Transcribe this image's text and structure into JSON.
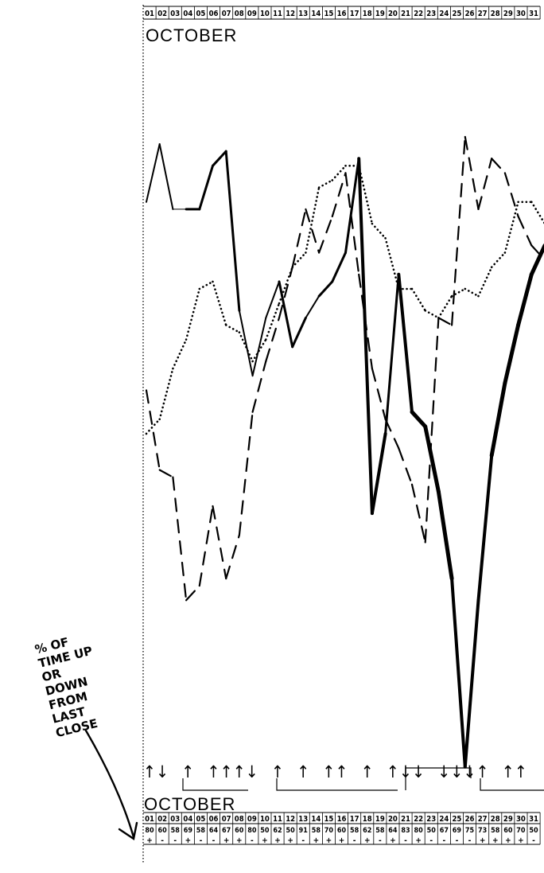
{
  "month": "OCTOBER",
  "days": [
    "01",
    "02",
    "03",
    "04",
    "05",
    "06",
    "07",
    "08",
    "09",
    "10",
    "11",
    "12",
    "13",
    "14",
    "15",
    "16",
    "17",
    "18",
    "19",
    "20",
    "21",
    "22",
    "23",
    "24",
    "25",
    "26",
    "27",
    "28",
    "29",
    "30",
    "31"
  ],
  "handwritten_note": [
    "% OF",
    "TIME UP",
    "OR",
    "DOWN",
    "FROM",
    "LAST",
    "CLOSE"
  ],
  "bottom_row_values": [
    "80",
    "60",
    "58",
    "69",
    "58",
    "64",
    "67",
    "60",
    "80",
    "50",
    "62",
    "50",
    "91",
    "58",
    "70",
    "60",
    "58",
    "62",
    "58",
    "64",
    "83",
    "80",
    "50",
    "67",
    "69",
    "75",
    "73",
    "58",
    "60",
    "70",
    "50"
  ],
  "bottom_row_signs": [
    "+",
    "-",
    "-",
    "+",
    "-",
    "-",
    "+",
    "+",
    "-",
    "+",
    "+",
    "+",
    "-",
    "+",
    "+",
    "+",
    "-",
    "+",
    "-",
    "+",
    "-",
    "+",
    "-",
    "-",
    "-",
    "-",
    "+",
    "+",
    "+",
    "+",
    "-"
  ],
  "direction_arrows": [
    "up",
    "down",
    "",
    "up",
    "",
    "up",
    "up",
    "up",
    "down",
    "",
    "up",
    "",
    "up",
    "",
    "up",
    "up",
    "",
    "up",
    "",
    "up",
    "down",
    "down",
    "",
    "down",
    "down",
    "down",
    "up",
    "",
    "up",
    "up",
    ""
  ],
  "colors": {
    "ink": "#000000",
    "paper": "#ffffff"
  },
  "chart_data": {
    "type": "line",
    "title": "OCTOBER",
    "xlabel": "",
    "ylabel": "",
    "x": [
      1,
      2,
      3,
      4,
      5,
      6,
      7,
      8,
      9,
      10,
      11,
      12,
      13,
      14,
      15,
      16,
      17,
      18,
      19,
      20,
      21,
      22,
      23,
      24,
      25,
      26,
      27,
      28,
      29,
      30,
      31
    ],
    "ylim": [
      0,
      100
    ],
    "grid": false,
    "series": [
      {
        "style": "solid-varying-weight",
        "values": [
          82,
          90,
          81,
          81,
          81,
          87,
          89,
          67,
          58,
          66,
          71,
          62,
          66,
          69,
          71,
          75,
          88,
          39,
          50,
          72,
          53,
          51,
          42,
          30,
          4,
          27,
          47,
          57,
          65,
          72,
          76
        ],
        "weights": [
          2,
          2,
          1,
          3,
          3,
          3,
          3,
          2,
          2,
          2,
          3,
          3,
          2,
          3,
          3,
          3,
          4,
          4,
          3,
          4,
          5,
          5,
          5,
          4,
          4,
          4,
          5,
          5,
          5,
          5,
          5
        ]
      },
      {
        "style": "dashed",
        "values": [
          56,
          45,
          44,
          27,
          29,
          40,
          30,
          36,
          53,
          60,
          66,
          73,
          81,
          75,
          80,
          86,
          72,
          59,
          52,
          48,
          43,
          35,
          66,
          65,
          91,
          81,
          88,
          86,
          80,
          76,
          74
        ]
      },
      {
        "style": "dotted",
        "values": [
          50,
          52,
          59,
          63,
          70,
          71,
          65,
          64,
          60,
          63,
          68,
          73,
          75,
          84,
          85,
          87,
          87,
          79,
          77,
          70,
          70,
          67,
          66,
          69,
          70,
          69,
          73,
          75,
          82,
          82,
          79
        ]
      }
    ]
  }
}
